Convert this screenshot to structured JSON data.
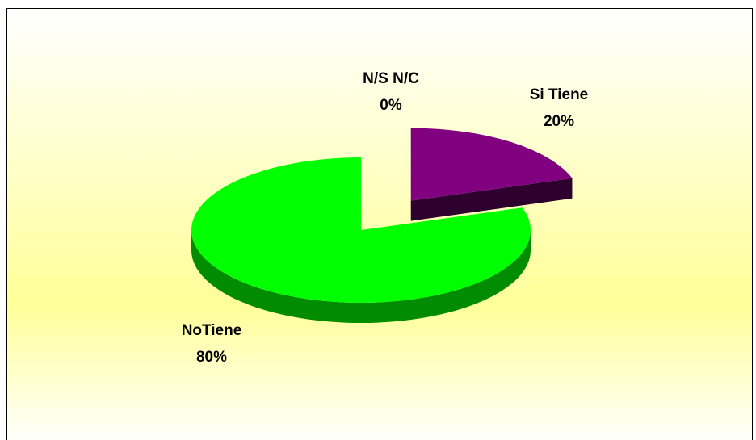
{
  "chart_data": {
    "type": "pie",
    "categories": [
      "Si Tiene",
      "NoTiene",
      "N/S N/C"
    ],
    "values": [
      20,
      80,
      0
    ],
    "value_labels": [
      "20%",
      "80%",
      "0%"
    ],
    "colors": [
      "#800080",
      "#00ff00",
      "#9999ff"
    ]
  }
}
